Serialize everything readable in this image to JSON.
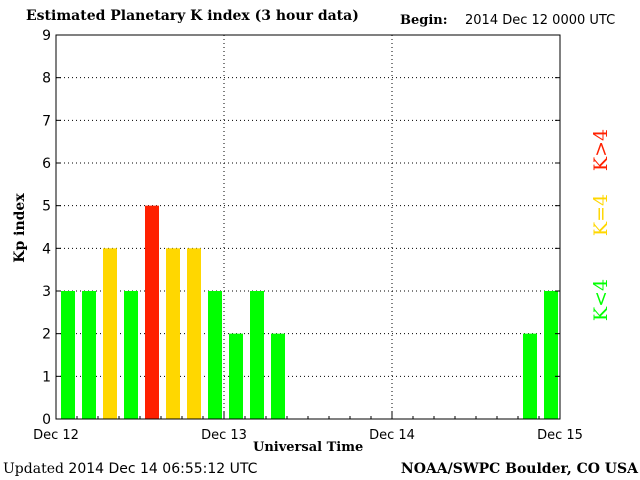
{
  "header": {
    "title": "Estimated Planetary K index (3 hour data)",
    "begin_label": "Begin:",
    "begin_value": "2014 Dec 12 0000 UTC"
  },
  "footer": {
    "updated_label": "Updated",
    "updated_value": "2014 Dec 14 06:55:12 UTC",
    "credit": "NOAA/SWPC Boulder, CO USA"
  },
  "chart_data": {
    "type": "bar",
    "title": "Estimated Planetary K index (3 hour data)",
    "xlabel": "Universal Time",
    "ylabel": "Kp index",
    "ylim": [
      0,
      9
    ],
    "y_ticks": [
      "0",
      "1",
      "2",
      "3",
      "4",
      "5",
      "6",
      "7",
      "8",
      "9"
    ],
    "x_ticks": [
      "Dec 12",
      "Dec 13",
      "Dec 14",
      "Dec 15"
    ],
    "bins_per_day": 8,
    "values": [
      3,
      3,
      4,
      3,
      5,
      4,
      4,
      3,
      2,
      3,
      2,
      null,
      null,
      null,
      null,
      null,
      null,
      null,
      null,
      null,
      null,
      null,
      2,
      3
    ],
    "grid": true,
    "colors": {
      "low": "#00ff00",
      "equal": "#ffd700",
      "high": "#ff2000"
    },
    "legend": [
      {
        "label": "K<4",
        "color": "#00ff00"
      },
      {
        "label": "K=4",
        "color": "#ffd700"
      },
      {
        "label": "K>4",
        "color": "#ff2000"
      }
    ],
    "legend_placement": "right"
  }
}
